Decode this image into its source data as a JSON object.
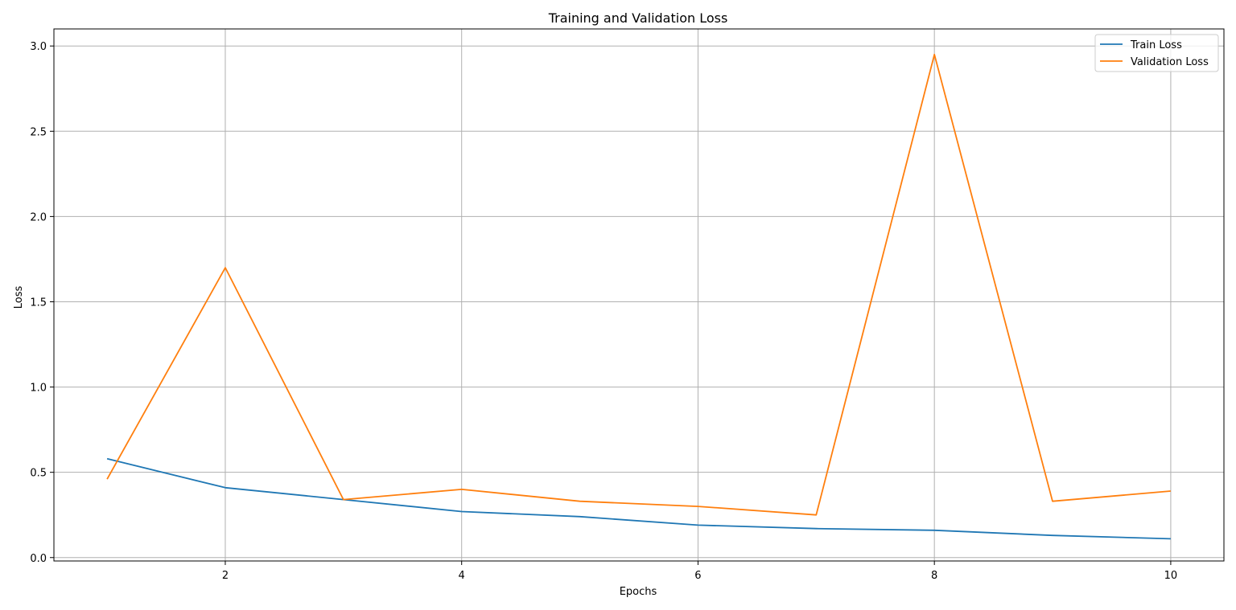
{
  "chart_data": {
    "type": "line",
    "title": "Training and Validation Loss",
    "xlabel": "Epochs",
    "ylabel": "Loss",
    "x": [
      1,
      2,
      3,
      4,
      5,
      6,
      7,
      8,
      9,
      10
    ],
    "series": [
      {
        "name": "Train Loss",
        "color": "#1f77b4",
        "values": [
          0.58,
          0.41,
          0.34,
          0.27,
          0.24,
          0.19,
          0.17,
          0.16,
          0.13,
          0.11
        ]
      },
      {
        "name": "Validation Loss",
        "color": "#ff7f0e",
        "values": [
          0.46,
          1.7,
          0.34,
          0.4,
          0.33,
          0.3,
          0.25,
          2.95,
          0.33,
          0.39
        ]
      }
    ],
    "xlim": [
      0.55,
      10.45
    ],
    "ylim": [
      -0.02,
      3.1
    ],
    "xticks": [
      2,
      4,
      6,
      8,
      10
    ],
    "xtick_labels": [
      "2",
      "4",
      "6",
      "8",
      "10"
    ],
    "yticks": [
      0,
      0.5,
      1.0,
      1.5,
      2.0,
      2.5,
      3.0
    ],
    "ytick_labels": [
      "0.0",
      "0.5",
      "1.0",
      "1.5",
      "2.0",
      "2.5",
      "3.0"
    ],
    "grid": true,
    "legend_position": "top-right"
  }
}
